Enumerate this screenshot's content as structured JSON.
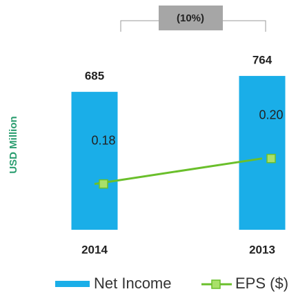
{
  "chart_data": {
    "type": "bar-line",
    "y_label": "USD Million",
    "annotation": "(10%)",
    "categories": [
      "2014",
      "2013"
    ],
    "series": [
      {
        "name": "Net Income",
        "color": "#1aaee8",
        "values": [
          685,
          764
        ]
      },
      {
        "name": "EPS ($)",
        "color": "#6abf2b",
        "marker_color": "#a9e06a",
        "axis": "y2",
        "values": [
          0.18,
          0.2
        ],
        "value_labels": [
          "0.18",
          "0.20"
        ]
      }
    ],
    "ylim": [
      0,
      1100
    ],
    "y2lim": [
      0.144,
      0.318
    ],
    "grid": false
  }
}
